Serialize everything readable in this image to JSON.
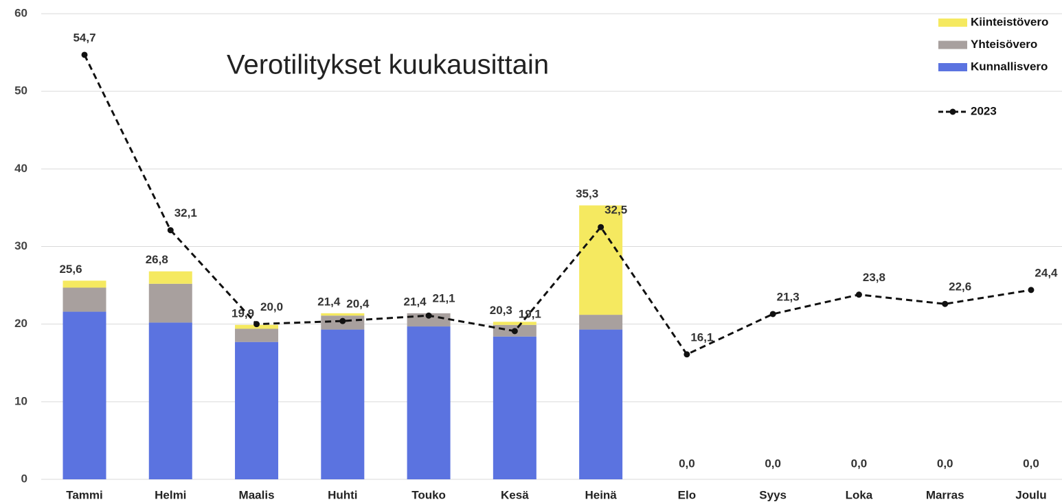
{
  "chart_data": {
    "type": "bar",
    "title": "Verotilitykset kuukausittain",
    "categories": [
      "Tammi",
      "Helmi",
      "Maalis",
      "Huhti",
      "Touko",
      "Kesä",
      "Heinä",
      "Elo",
      "Syys",
      "Loka",
      "Marras",
      "Joulu"
    ],
    "series": [
      {
        "name": "Kunnallisvero",
        "color": "#5b73e0",
        "type": "bar",
        "values": [
          21.6,
          20.2,
          17.7,
          19.3,
          19.7,
          18.4,
          19.3,
          0,
          0,
          0,
          0,
          0
        ]
      },
      {
        "name": "Yhteisövero",
        "color": "#a8a09e",
        "type": "bar",
        "values": [
          3.1,
          5.0,
          1.7,
          1.8,
          1.7,
          1.5,
          1.9,
          0,
          0,
          0,
          0,
          0
        ]
      },
      {
        "name": "Kiinteistövero",
        "color": "#f5e960",
        "type": "bar",
        "values": [
          0.9,
          1.6,
          0.5,
          0.3,
          0,
          0.4,
          14.1,
          0,
          0,
          0,
          0,
          0
        ]
      },
      {
        "name": "2023",
        "color": "#111111",
        "type": "line",
        "dashed": true,
        "values": [
          54.7,
          32.1,
          20.0,
          20.4,
          21.1,
          19.1,
          32.5,
          16.1,
          21.3,
          23.8,
          22.6,
          24.4
        ],
        "value_labels": [
          "54,7",
          "32,1",
          "20,0",
          "20,4",
          "21,1",
          "19,1",
          "32,5",
          "16,1",
          "21,3",
          "23,8",
          "22,6",
          "24,4"
        ]
      }
    ],
    "total_labels": [
      "25,6",
      "26,8",
      "19,9",
      "21,4",
      "21,4",
      "20,3",
      "35,3",
      "0,0",
      "0,0",
      "0,0",
      "0,0",
      "0,0"
    ],
    "ylim": [
      0,
      60
    ],
    "yticks": [
      0,
      10,
      20,
      30,
      40,
      50,
      60
    ],
    "grid": true,
    "legend": "top-right"
  }
}
